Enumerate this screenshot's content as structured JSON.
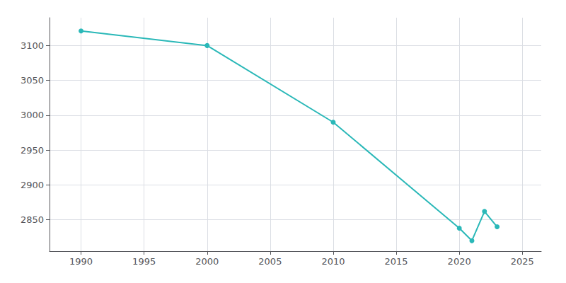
{
  "chart_data": {
    "type": "line",
    "x": [
      1990,
      2000,
      2010,
      2020,
      2021,
      2022,
      2023
    ],
    "values": [
      3121,
      3100,
      2990,
      2838,
      2820,
      2862,
      2840
    ],
    "color": "#2ab8b8",
    "marker": "circle",
    "xlim": [
      1987.5,
      2026.5
    ],
    "ylim": [
      2805,
      3140
    ],
    "xticks": [
      1990,
      1995,
      2000,
      2005,
      2010,
      2015,
      2020,
      2025
    ],
    "yticks": [
      2850,
      2900,
      2950,
      3000,
      3050,
      3100
    ],
    "grid": true
  }
}
